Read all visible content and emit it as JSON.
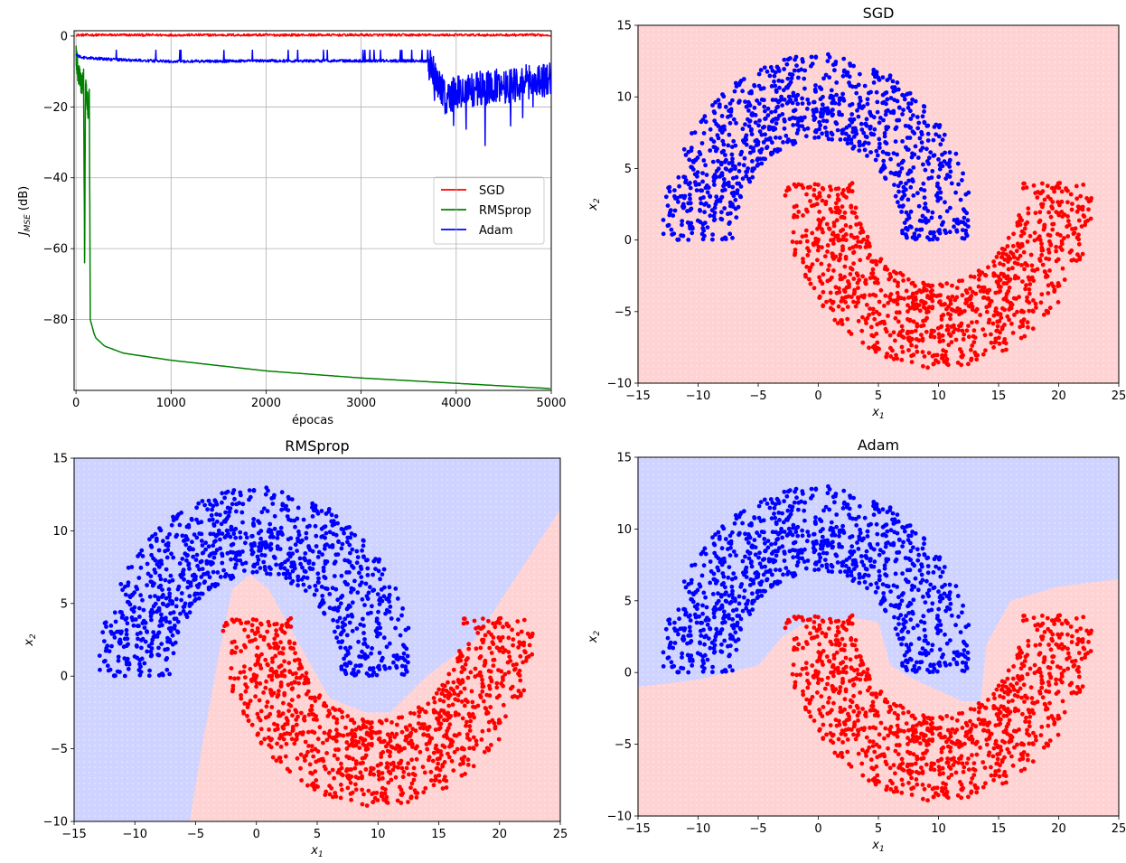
{
  "colors": {
    "sgd": "#ff0000",
    "rmsprop": "#008000",
    "adam": "#0000ff",
    "class_blue": "#0000ff",
    "class_red": "#ff0000",
    "region_blue": "#cfd3ff",
    "region_red": "#ffd3d3",
    "grid": "#b0b0b0"
  },
  "chart_data": [
    {
      "type": "line",
      "title": "",
      "xlabel": "épocas",
      "ylabel": "J_MSE (dB)",
      "ylabel_main": "J",
      "ylabel_sub": "MSE",
      "ylabel_rest": " (dB)",
      "xlim": [
        -20,
        5000
      ],
      "ylim": [
        -100,
        1.5
      ],
      "xticks": [
        0,
        1000,
        2000,
        3000,
        4000,
        5000
      ],
      "yticks": [
        0,
        -20,
        -40,
        -60,
        -80
      ],
      "grid": true,
      "legend": "center-right",
      "series": [
        {
          "name": "SGD",
          "color": "sgd",
          "shape": "flat",
          "level": 0.3,
          "noise": 0.35
        },
        {
          "name": "RMSprop",
          "color": "rmsprop",
          "shape": "decay",
          "points": [
            [
              0,
              -5
            ],
            [
              20,
              -10
            ],
            [
              40,
              -12
            ],
            [
              60,
              -14
            ],
            [
              80,
              -12
            ],
            [
              90,
              -64
            ],
            [
              100,
              -14
            ],
            [
              120,
              -18
            ],
            [
              130,
              -22
            ],
            [
              140,
              -15
            ],
            [
              150,
              -80
            ],
            [
              200,
              -85
            ],
            [
              300,
              -87.5
            ],
            [
              500,
              -89.5
            ],
            [
              1000,
              -91.5
            ],
            [
              2000,
              -94.5
            ],
            [
              3000,
              -96.5
            ],
            [
              4000,
              -98
            ],
            [
              5000,
              -99.5
            ]
          ]
        },
        {
          "name": "Adam",
          "color": "adam",
          "shape": "noisy",
          "points": [
            [
              0,
              -5
            ],
            [
              50,
              -6
            ],
            [
              300,
              -6.5
            ],
            [
              1000,
              -7.2
            ],
            [
              2000,
              -7
            ],
            [
              3000,
              -7
            ],
            [
              3700,
              -7
            ],
            [
              3800,
              -12
            ],
            [
              3900,
              -18
            ],
            [
              4000,
              -16
            ],
            [
              4200,
              -15
            ],
            [
              4500,
              -14
            ],
            [
              5000,
              -12
            ]
          ]
        }
      ]
    },
    {
      "type": "scatter",
      "title": "SGD",
      "xlabel": "x_1",
      "ylabel": "x_2",
      "xlim": [
        -15,
        25
      ],
      "ylim": [
        -10,
        15
      ],
      "xticks": [
        -15,
        -10,
        -5,
        0,
        5,
        10,
        15,
        20,
        25
      ],
      "yticks": [
        -10,
        -5,
        0,
        5,
        10,
        15
      ],
      "region": "all-red",
      "classes": [
        {
          "name": "upper moon",
          "color": "class_blue",
          "center": [
            0,
            0
          ],
          "radius_range": [
            7,
            13
          ],
          "angle_range_deg": [
            0,
            180
          ],
          "count": 1000
        },
        {
          "name": "lower moon",
          "color": "class_red",
          "center": [
            10,
            4
          ],
          "radius_range": [
            7,
            13
          ],
          "angle_range_deg": [
            180,
            360
          ],
          "count": 1000
        }
      ]
    },
    {
      "type": "scatter",
      "title": "RMSprop",
      "xlabel": "x_1",
      "ylabel": "x_2",
      "xlim": [
        -15,
        25
      ],
      "ylim": [
        -10,
        15
      ],
      "xticks": [
        -15,
        -10,
        -5,
        0,
        5,
        10,
        15,
        20,
        25
      ],
      "yticks": [
        -10,
        -5,
        0,
        5,
        10,
        15
      ],
      "region": "polyline",
      "boundary": [
        [
          -5.5,
          -10
        ],
        [
          -4.5,
          -5
        ],
        [
          -3.2,
          1
        ],
        [
          -2,
          6
        ],
        [
          -0.5,
          7
        ],
        [
          1,
          6
        ],
        [
          3,
          3
        ],
        [
          6,
          -1.5
        ],
        [
          9,
          -2.5
        ],
        [
          11,
          -2.5
        ],
        [
          14,
          0
        ],
        [
          18,
          2.5
        ],
        [
          25,
          11.5
        ]
      ],
      "classes": [
        {
          "name": "upper moon",
          "color": "class_blue",
          "center": [
            0,
            0
          ],
          "radius_range": [
            7,
            13
          ],
          "angle_range_deg": [
            0,
            180
          ],
          "count": 1000
        },
        {
          "name": "lower moon",
          "color": "class_red",
          "center": [
            10,
            4
          ],
          "radius_range": [
            7,
            13
          ],
          "angle_range_deg": [
            180,
            360
          ],
          "count": 1000
        }
      ]
    },
    {
      "type": "scatter",
      "title": "Adam",
      "xlabel": "x_1",
      "ylabel": "x_2",
      "xlim": [
        -15,
        25
      ],
      "ylim": [
        -10,
        15
      ],
      "xticks": [
        -15,
        -10,
        -5,
        0,
        5,
        10,
        15,
        20,
        25
      ],
      "yticks": [
        -10,
        -5,
        0,
        5,
        10,
        15
      ],
      "region": "polyline",
      "boundary": [
        [
          -15,
          -1
        ],
        [
          -10,
          -0.5
        ],
        [
          -5,
          0.5
        ],
        [
          -3,
          2.5
        ],
        [
          -1,
          3.5
        ],
        [
          3,
          3.8
        ],
        [
          5,
          3.5
        ],
        [
          6,
          0.5
        ],
        [
          8,
          -0.5
        ],
        [
          12,
          -2
        ],
        [
          13.5,
          -2
        ],
        [
          14,
          2
        ],
        [
          16,
          5
        ],
        [
          20,
          6
        ],
        [
          25,
          6.5
        ]
      ],
      "classes": [
        {
          "name": "upper moon",
          "color": "class_blue",
          "center": [
            0,
            0
          ],
          "radius_range": [
            7,
            13
          ],
          "angle_range_deg": [
            0,
            180
          ],
          "count": 1000
        },
        {
          "name": "lower moon",
          "color": "class_red",
          "center": [
            10,
            4
          ],
          "radius_range": [
            7,
            13
          ],
          "angle_range_deg": [
            180,
            360
          ],
          "count": 1000
        }
      ]
    }
  ]
}
